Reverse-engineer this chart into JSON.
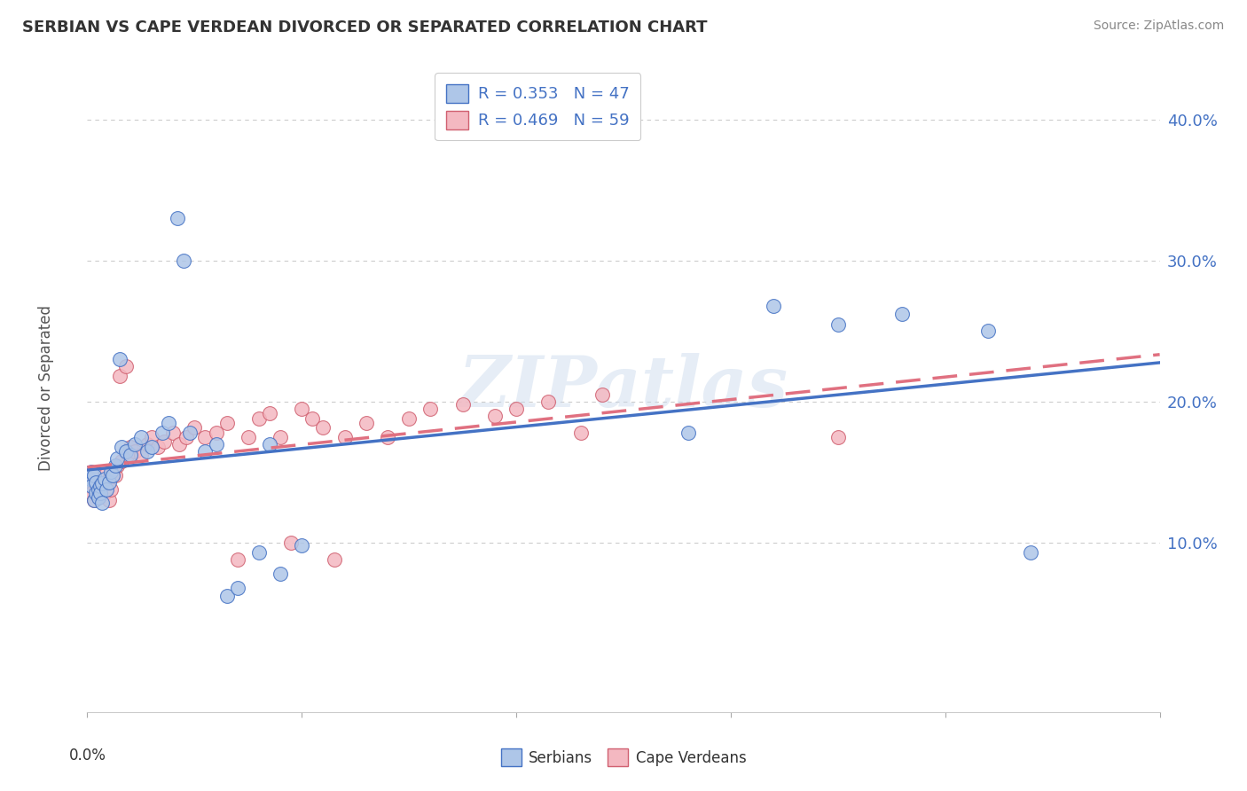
{
  "title": "SERBIAN VS CAPE VERDEAN DIVORCED OR SEPARATED CORRELATION CHART",
  "source": "Source: ZipAtlas.com",
  "ylabel": "Divorced or Separated",
  "xlim": [
    0.0,
    0.5
  ],
  "ylim": [
    -0.02,
    0.44
  ],
  "yticks": [
    0.0,
    0.1,
    0.2,
    0.3,
    0.4
  ],
  "ytick_labels": [
    "",
    "10.0%",
    "20.0%",
    "30.0%",
    "40.0%"
  ],
  "legend_serbian": "R = 0.353   N = 47",
  "legend_cape": "R = 0.469   N = 59",
  "serbian_color": "#aec6e8",
  "cape_color": "#f4b8c1",
  "serbian_line_color": "#4472c4",
  "cape_line_color": "#e07080",
  "background_color": "#ffffff",
  "watermark": "ZIPatlas",
  "serbian_x": [
    0.001,
    0.002,
    0.002,
    0.003,
    0.003,
    0.004,
    0.004,
    0.005,
    0.005,
    0.006,
    0.006,
    0.007,
    0.007,
    0.008,
    0.009,
    0.01,
    0.011,
    0.012,
    0.013,
    0.014,
    0.015,
    0.016,
    0.018,
    0.02,
    0.022,
    0.025,
    0.028,
    0.03,
    0.035,
    0.038,
    0.042,
    0.045,
    0.048,
    0.055,
    0.06,
    0.065,
    0.07,
    0.08,
    0.085,
    0.09,
    0.1,
    0.28,
    0.32,
    0.35,
    0.38,
    0.42,
    0.44
  ],
  "serbian_y": [
    0.145,
    0.14,
    0.15,
    0.13,
    0.148,
    0.135,
    0.143,
    0.138,
    0.132,
    0.14,
    0.135,
    0.142,
    0.128,
    0.145,
    0.138,
    0.143,
    0.15,
    0.148,
    0.155,
    0.16,
    0.23,
    0.168,
    0.165,
    0.162,
    0.17,
    0.175,
    0.165,
    0.168,
    0.178,
    0.185,
    0.33,
    0.3,
    0.178,
    0.165,
    0.17,
    0.062,
    0.068,
    0.093,
    0.17,
    0.078,
    0.098,
    0.178,
    0.268,
    0.255,
    0.262,
    0.25,
    0.093
  ],
  "cape_x": [
    0.001,
    0.002,
    0.002,
    0.003,
    0.003,
    0.004,
    0.005,
    0.005,
    0.006,
    0.007,
    0.008,
    0.008,
    0.009,
    0.01,
    0.01,
    0.011,
    0.012,
    0.013,
    0.014,
    0.015,
    0.016,
    0.018,
    0.019,
    0.02,
    0.022,
    0.025,
    0.028,
    0.03,
    0.033,
    0.036,
    0.04,
    0.043,
    0.046,
    0.05,
    0.055,
    0.06,
    0.065,
    0.07,
    0.075,
    0.08,
    0.085,
    0.09,
    0.095,
    0.1,
    0.105,
    0.11,
    0.115,
    0.12,
    0.13,
    0.14,
    0.15,
    0.16,
    0.175,
    0.19,
    0.2,
    0.215,
    0.23,
    0.24,
    0.35
  ],
  "cape_y": [
    0.14,
    0.135,
    0.148,
    0.13,
    0.143,
    0.138,
    0.132,
    0.145,
    0.138,
    0.143,
    0.135,
    0.148,
    0.142,
    0.13,
    0.145,
    0.138,
    0.15,
    0.148,
    0.155,
    0.218,
    0.158,
    0.225,
    0.162,
    0.168,
    0.165,
    0.162,
    0.17,
    0.175,
    0.168,
    0.172,
    0.178,
    0.17,
    0.175,
    0.182,
    0.175,
    0.178,
    0.185,
    0.088,
    0.175,
    0.188,
    0.192,
    0.175,
    0.1,
    0.195,
    0.188,
    0.182,
    0.088,
    0.175,
    0.185,
    0.175,
    0.188,
    0.195,
    0.198,
    0.19,
    0.195,
    0.2,
    0.178,
    0.205,
    0.175
  ]
}
